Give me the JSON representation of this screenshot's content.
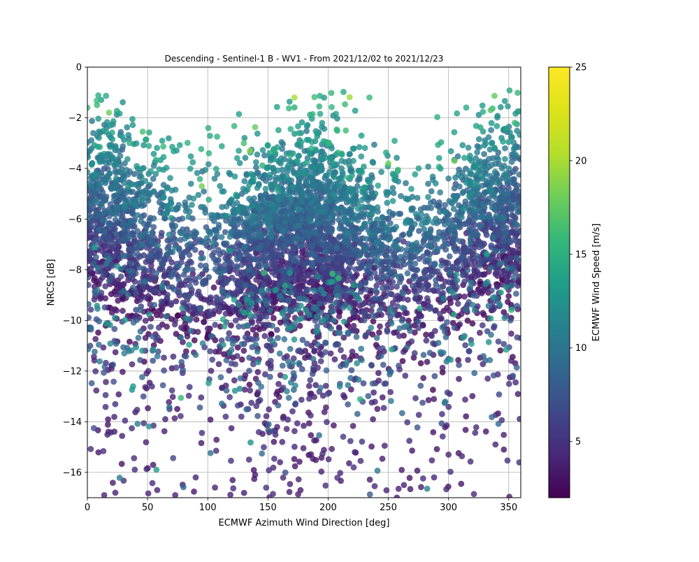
{
  "chart_data": {
    "type": "scatter",
    "title": "Descending - Sentinel-1 B - WV1 - From 2021/12/02 to 2021/12/23",
    "xlabel": "ECMWF Azimuth Wind Direction [deg]",
    "ylabel": "NRCS [dB]",
    "xlim": [
      0,
      360
    ],
    "ylim": [
      -17,
      0
    ],
    "xticks": [
      0,
      50,
      100,
      150,
      200,
      250,
      300,
      350
    ],
    "yticks": [
      0,
      -2,
      -4,
      -6,
      -8,
      -10,
      -12,
      -14,
      -16
    ],
    "grid": true,
    "colormap": "viridis",
    "marker_alpha": 0.8,
    "colorbar": {
      "label": "ECMWF Wind Speed [m/s]",
      "range": [
        2,
        25
      ],
      "ticks": [
        5,
        10,
        15,
        20,
        25
      ]
    },
    "approx_point_count": 5500,
    "representative_points": [
      {
        "x": 0,
        "y": -1.6,
        "c": 16
      },
      {
        "x": 8,
        "y": -1.5,
        "c": 16
      },
      {
        "x": 18,
        "y": -1.8,
        "c": 18
      },
      {
        "x": 35,
        "y": -3.0,
        "c": 15
      },
      {
        "x": 65,
        "y": -5.8,
        "c": 12
      },
      {
        "x": 95,
        "y": -4.7,
        "c": 18
      },
      {
        "x": 135,
        "y": -3.3,
        "c": 19
      },
      {
        "x": 172,
        "y": -1.2,
        "c": 20
      },
      {
        "x": 200,
        "y": -3.0,
        "c": 16
      },
      {
        "x": 250,
        "y": -3.8,
        "c": 18
      },
      {
        "x": 305,
        "y": -3.7,
        "c": 18
      },
      {
        "x": 335,
        "y": -1.7,
        "c": 17
      },
      {
        "x": 355,
        "y": -2.2,
        "c": 16
      },
      {
        "x": 60,
        "y": -8.0,
        "c": 7
      },
      {
        "x": 180,
        "y": -6.5,
        "c": 9
      },
      {
        "x": 300,
        "y": -8.0,
        "c": 7
      },
      {
        "x": 14,
        "y": -16.9,
        "c": 4
      },
      {
        "x": 58,
        "y": -16.7,
        "c": 4
      },
      {
        "x": 73,
        "y": -16.9,
        "c": 4
      },
      {
        "x": 90,
        "y": -16.2,
        "c": 4
      },
      {
        "x": 106,
        "y": -16.6,
        "c": 4
      },
      {
        "x": 160,
        "y": -15.6,
        "c": 4
      },
      {
        "x": 263,
        "y": -16.5,
        "c": 4
      },
      {
        "x": 288,
        "y": -16.2,
        "c": 4
      },
      {
        "x": 300,
        "y": -15.3,
        "c": 4
      },
      {
        "x": 339,
        "y": -14.9,
        "c": 4
      },
      {
        "x": 360,
        "y": -10.7,
        "c": 4
      }
    ]
  }
}
